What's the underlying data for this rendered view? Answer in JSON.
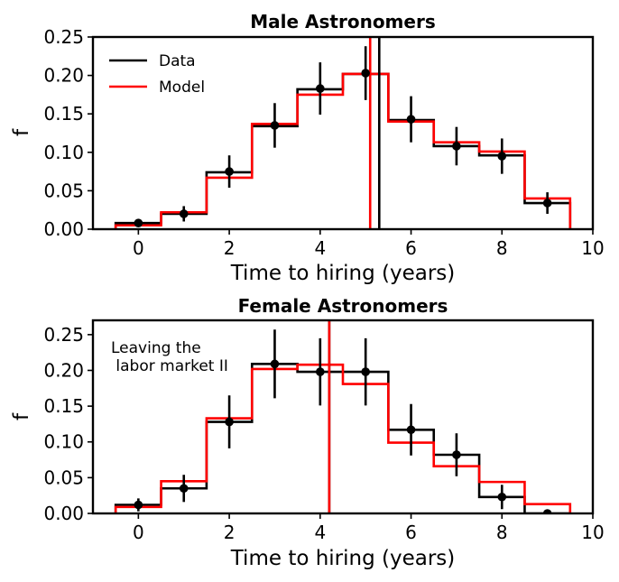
{
  "chart_data": [
    {
      "type": "histogram",
      "title": "Male Astronomers",
      "xlabel": "Time to hiring (years)",
      "ylabel": "f",
      "xlim": [
        -1,
        10
      ],
      "ylim": [
        0,
        0.25
      ],
      "xticks": [
        0,
        2,
        4,
        6,
        8,
        10
      ],
      "yticks": [
        0.0,
        0.05,
        0.1,
        0.15,
        0.2,
        0.25
      ],
      "bin_edges": [
        -0.5,
        0.5,
        1.5,
        2.5,
        3.5,
        4.5,
        5.5,
        6.5,
        7.5,
        8.5,
        9.5
      ],
      "legend": {
        "position": "top-left",
        "entries": [
          "Data",
          "Model"
        ]
      },
      "annotation": "",
      "series": [
        {
          "name": "Data",
          "color": "#000000",
          "values": [
            0.008,
            0.02,
            0.074,
            0.134,
            0.182,
            0.202,
            0.142,
            0.108,
            0.096,
            0.034
          ],
          "points_x": [
            0,
            1,
            2,
            3,
            4,
            5,
            6,
            7,
            8,
            9
          ],
          "points_y": [
            0.008,
            0.02,
            0.075,
            0.135,
            0.183,
            0.203,
            0.143,
            0.108,
            0.095,
            0.034
          ],
          "errors": [
            0.004,
            0.01,
            0.021,
            0.029,
            0.034,
            0.035,
            0.03,
            0.025,
            0.023,
            0.014
          ],
          "mean": 5.3
        },
        {
          "name": "Model",
          "color": "#ff0000",
          "values": [
            0.005,
            0.022,
            0.067,
            0.137,
            0.175,
            0.202,
            0.14,
            0.113,
            0.101,
            0.04
          ],
          "mean": 5.1
        }
      ]
    },
    {
      "type": "histogram",
      "title": "Female Astronomers",
      "xlabel": "Time to hiring (years)",
      "ylabel": "f",
      "xlim": [
        -1,
        10
      ],
      "ylim": [
        0,
        0.27
      ],
      "xticks": [
        0,
        2,
        4,
        6,
        8,
        10
      ],
      "yticks": [
        0.0,
        0.05,
        0.1,
        0.15,
        0.2,
        0.25
      ],
      "bin_edges": [
        -0.5,
        0.5,
        1.5,
        2.5,
        3.5,
        4.5,
        5.5,
        6.5,
        7.5,
        8.5,
        9.5
      ],
      "annotation": [
        "Leaving the",
        " labor market II"
      ],
      "series": [
        {
          "name": "Data",
          "color": "#000000",
          "values": [
            0.012,
            0.035,
            0.128,
            0.209,
            0.198,
            0.198,
            0.117,
            0.082,
            0.023,
            0.0
          ],
          "points_x": [
            0,
            1,
            2,
            3,
            4,
            5,
            6,
            7,
            8,
            9
          ],
          "points_y": [
            0.012,
            0.035,
            0.128,
            0.209,
            0.198,
            0.198,
            0.117,
            0.082,
            0.023,
            0.0
          ],
          "errors": [
            0.009,
            0.019,
            0.037,
            0.048,
            0.047,
            0.047,
            0.036,
            0.03,
            0.017,
            0.0
          ],
          "mean": 4.2
        },
        {
          "name": "Model",
          "color": "#ff0000",
          "values": [
            0.009,
            0.045,
            0.133,
            0.202,
            0.208,
            0.181,
            0.099,
            0.066,
            0.044,
            0.013
          ],
          "mean": 4.2
        }
      ]
    }
  ]
}
